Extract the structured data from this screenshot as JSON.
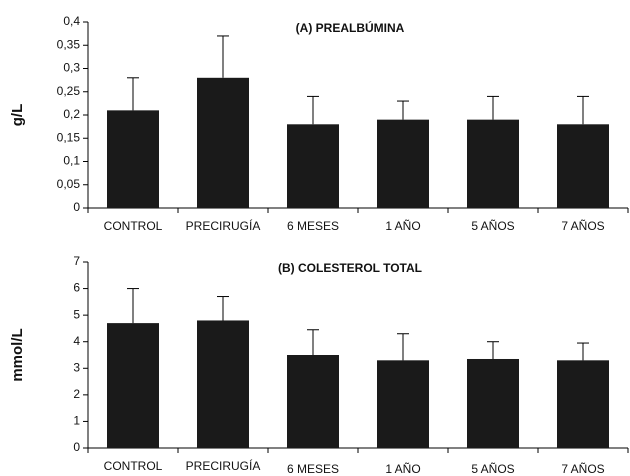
{
  "chart_data": [
    {
      "type": "bar",
      "title": "(A) PREALBÚMINA",
      "y_label": "g/L",
      "categories": [
        "CONTROL",
        "PRECIRUGÍA",
        "6 MESES",
        "1 AÑO",
        "5 AÑOS",
        "7 AÑOS"
      ],
      "values": [
        0.21,
        0.28,
        0.18,
        0.19,
        0.19,
        0.18
      ],
      "errors": [
        0.07,
        0.09,
        0.06,
        0.04,
        0.05,
        0.06
      ],
      "color": "#1a1a1a",
      "ylim": [
        0,
        0.4
      ],
      "yticks": [
        0,
        {
          "value": 0.05,
          "label": "0,05"
        },
        {
          "value": 0.1,
          "label": "0,1"
        },
        {
          "value": 0.15,
          "label": "0,15"
        },
        {
          "value": 0.2,
          "label": "0,2"
        },
        {
          "value": 0.25,
          "label": "0,25"
        },
        {
          "value": 0.3,
          "label": "0,3"
        },
        {
          "value": 0.35,
          "label": "0,35"
        },
        {
          "value": 0.4,
          "label": "0,4"
        }
      ]
    },
    {
      "type": "bar",
      "title": "(B) COLESTEROL TOTAL",
      "y_label": "mmol/L",
      "categories": [
        "CONTROL",
        "PRECIRUGÍA",
        "6 MESES",
        "1 AÑO",
        "5 AÑOS",
        "7 AÑOS"
      ],
      "values": [
        4.7,
        4.8,
        3.5,
        3.3,
        3.35,
        3.3
      ],
      "errors": [
        1.3,
        0.9,
        0.95,
        1.0,
        0.65,
        0.65
      ],
      "color": "#1a1a1a",
      "ylim": [
        0,
        7
      ],
      "yticks": [
        0,
        1,
        2,
        3,
        4,
        5,
        6,
        7
      ]
    }
  ]
}
